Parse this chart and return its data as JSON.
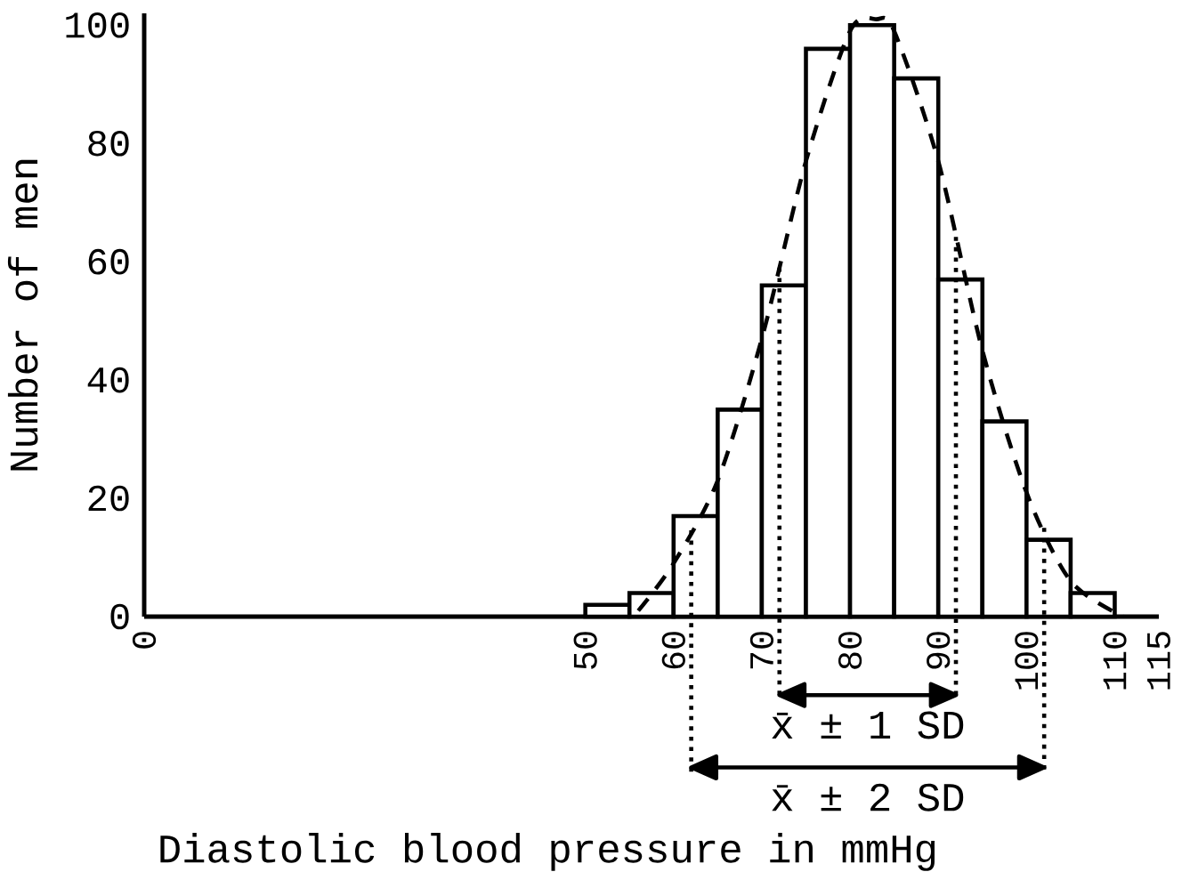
{
  "chart_data": {
    "type": "histogram",
    "xlabel": "Diastolic blood pressure in mmHg",
    "ylabel": "Number of men",
    "bins": [
      50,
      55,
      60,
      65,
      70,
      75,
      80,
      85,
      90,
      95,
      100,
      105,
      110
    ],
    "values": [
      2,
      4,
      17,
      35,
      56,
      96,
      100,
      91,
      57,
      33,
      13,
      4
    ],
    "series": [
      {
        "type": "line",
        "line_style": "dashed",
        "x": [
          56,
          60,
          65,
          70,
          75,
          80,
          83,
          85,
          90,
          95,
          100,
          105,
          111
        ],
        "values": [
          1,
          9,
          23,
          47,
          77,
          99,
          101,
          99,
          77,
          45,
          21,
          6,
          0
        ]
      }
    ],
    "ref_lines": [
      {
        "axis": "x",
        "value": 72,
        "line_style": "dotted"
      },
      {
        "axis": "x",
        "value": 92,
        "line_style": "dotted"
      },
      {
        "axis": "x",
        "value": 62,
        "line_style": "dotted"
      },
      {
        "axis": "x",
        "value": 102,
        "line_style": "dotted"
      }
    ],
    "annotations": [
      "x̄ ± 1 SD",
      "x̄ ± 2 SD"
    ],
    "xlim": [
      0,
      115
    ],
    "xticks": [
      0,
      50,
      60,
      70,
      80,
      90,
      100,
      110,
      115
    ],
    "ylim": [
      0,
      102
    ],
    "yticks": [
      0,
      20,
      40,
      60,
      80,
      100
    ],
    "grid": false
  }
}
